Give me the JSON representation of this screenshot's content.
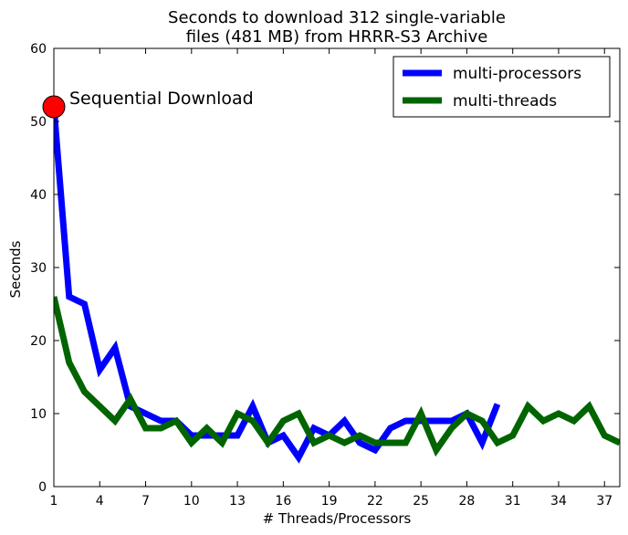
{
  "chart_data": {
    "type": "line",
    "title_line1": "Seconds to download 312 single-variable",
    "title_line2": "files (481 MB) from HRRR-S3 Archive",
    "xlabel": "# Threads/Processors",
    "ylabel": "Seconds",
    "xlim": [
      1,
      38
    ],
    "ylim": [
      0,
      60
    ],
    "xticks": [
      1,
      4,
      7,
      10,
      13,
      16,
      19,
      22,
      25,
      28,
      31,
      34,
      37
    ],
    "yticks": [
      0,
      10,
      20,
      30,
      40,
      50,
      60
    ],
    "grid": false,
    "legend_position": "top-right",
    "series": [
      {
        "name": "multi-processors",
        "color": "#0000ff",
        "x": [
          1,
          2,
          3,
          4,
          5,
          6,
          7,
          8,
          9,
          10,
          11,
          12,
          13,
          14,
          15,
          16,
          17,
          18,
          19,
          20,
          21,
          22,
          23,
          24,
          25,
          26,
          27,
          28,
          29,
          30
        ],
        "values": [
          52,
          26,
          25,
          16,
          19,
          11,
          10,
          9,
          9,
          7,
          7,
          7,
          7,
          11,
          6,
          7,
          4,
          8,
          7,
          9,
          6,
          5,
          8,
          9,
          9,
          9,
          9,
          10,
          6,
          11.3
        ]
      },
      {
        "name": "multi-threads",
        "color": "#006400",
        "x": [
          1,
          2,
          3,
          4,
          5,
          6,
          7,
          8,
          9,
          10,
          11,
          12,
          13,
          14,
          15,
          16,
          17,
          18,
          19,
          20,
          21,
          22,
          23,
          24,
          25,
          26,
          27,
          28,
          29,
          30,
          31,
          32,
          33,
          34,
          35,
          36,
          37,
          38
        ],
        "values": [
          26,
          17,
          13,
          11,
          9,
          12,
          8,
          8,
          9,
          6,
          8,
          6,
          10,
          9,
          6,
          9,
          10,
          6,
          7,
          6,
          7,
          6,
          6,
          6,
          10,
          5,
          8,
          10,
          9,
          6,
          7,
          11,
          9,
          10,
          9,
          11,
          7,
          6
        ]
      }
    ],
    "annotations": [
      {
        "text": "Sequential Download",
        "x": 1,
        "y": 52,
        "marker_color": "#ff0000"
      }
    ]
  }
}
